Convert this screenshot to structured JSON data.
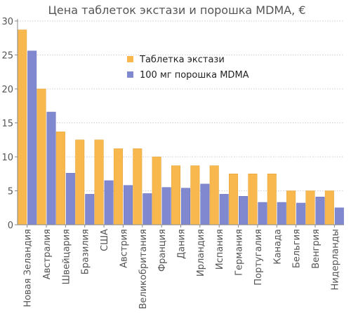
{
  "chart_data": {
    "type": "bar",
    "title": "Цена таблеток экстази и порошка MDMA, €",
    "xlabel": "",
    "ylabel": "",
    "ylim": [
      0,
      30
    ],
    "yticks": [
      0,
      5,
      10,
      15,
      20,
      25,
      30
    ],
    "grid": true,
    "legend_position": "top-right",
    "categories": [
      "Новая Зеландия",
      "Австралия",
      "Швейцария",
      "Бразилия",
      "США",
      "Австрия",
      "Великобритания",
      "Франция",
      "Дания",
      "Ирландия",
      "Испания",
      "Германия",
      "Португалия",
      "Канада",
      "Бельгия",
      "Венгрия",
      "Нидерланды"
    ],
    "series": [
      {
        "name": "Таблетка экстази",
        "color": "#f9b84e",
        "values": [
          28.7,
          20,
          13.7,
          12.5,
          12.5,
          11.2,
          11.2,
          10,
          8.7,
          8.7,
          8.7,
          7.5,
          7.5,
          7.5,
          5,
          5,
          5
        ]
      },
      {
        "name": "100 мг порошка MDMA",
        "color": "#8088d0",
        "values": [
          25.6,
          16.6,
          7.6,
          4.5,
          6.5,
          5.8,
          4.6,
          5.5,
          5.4,
          6,
          4.5,
          4.2,
          3.3,
          3.3,
          3.2,
          4.1,
          2.5
        ]
      }
    ]
  }
}
